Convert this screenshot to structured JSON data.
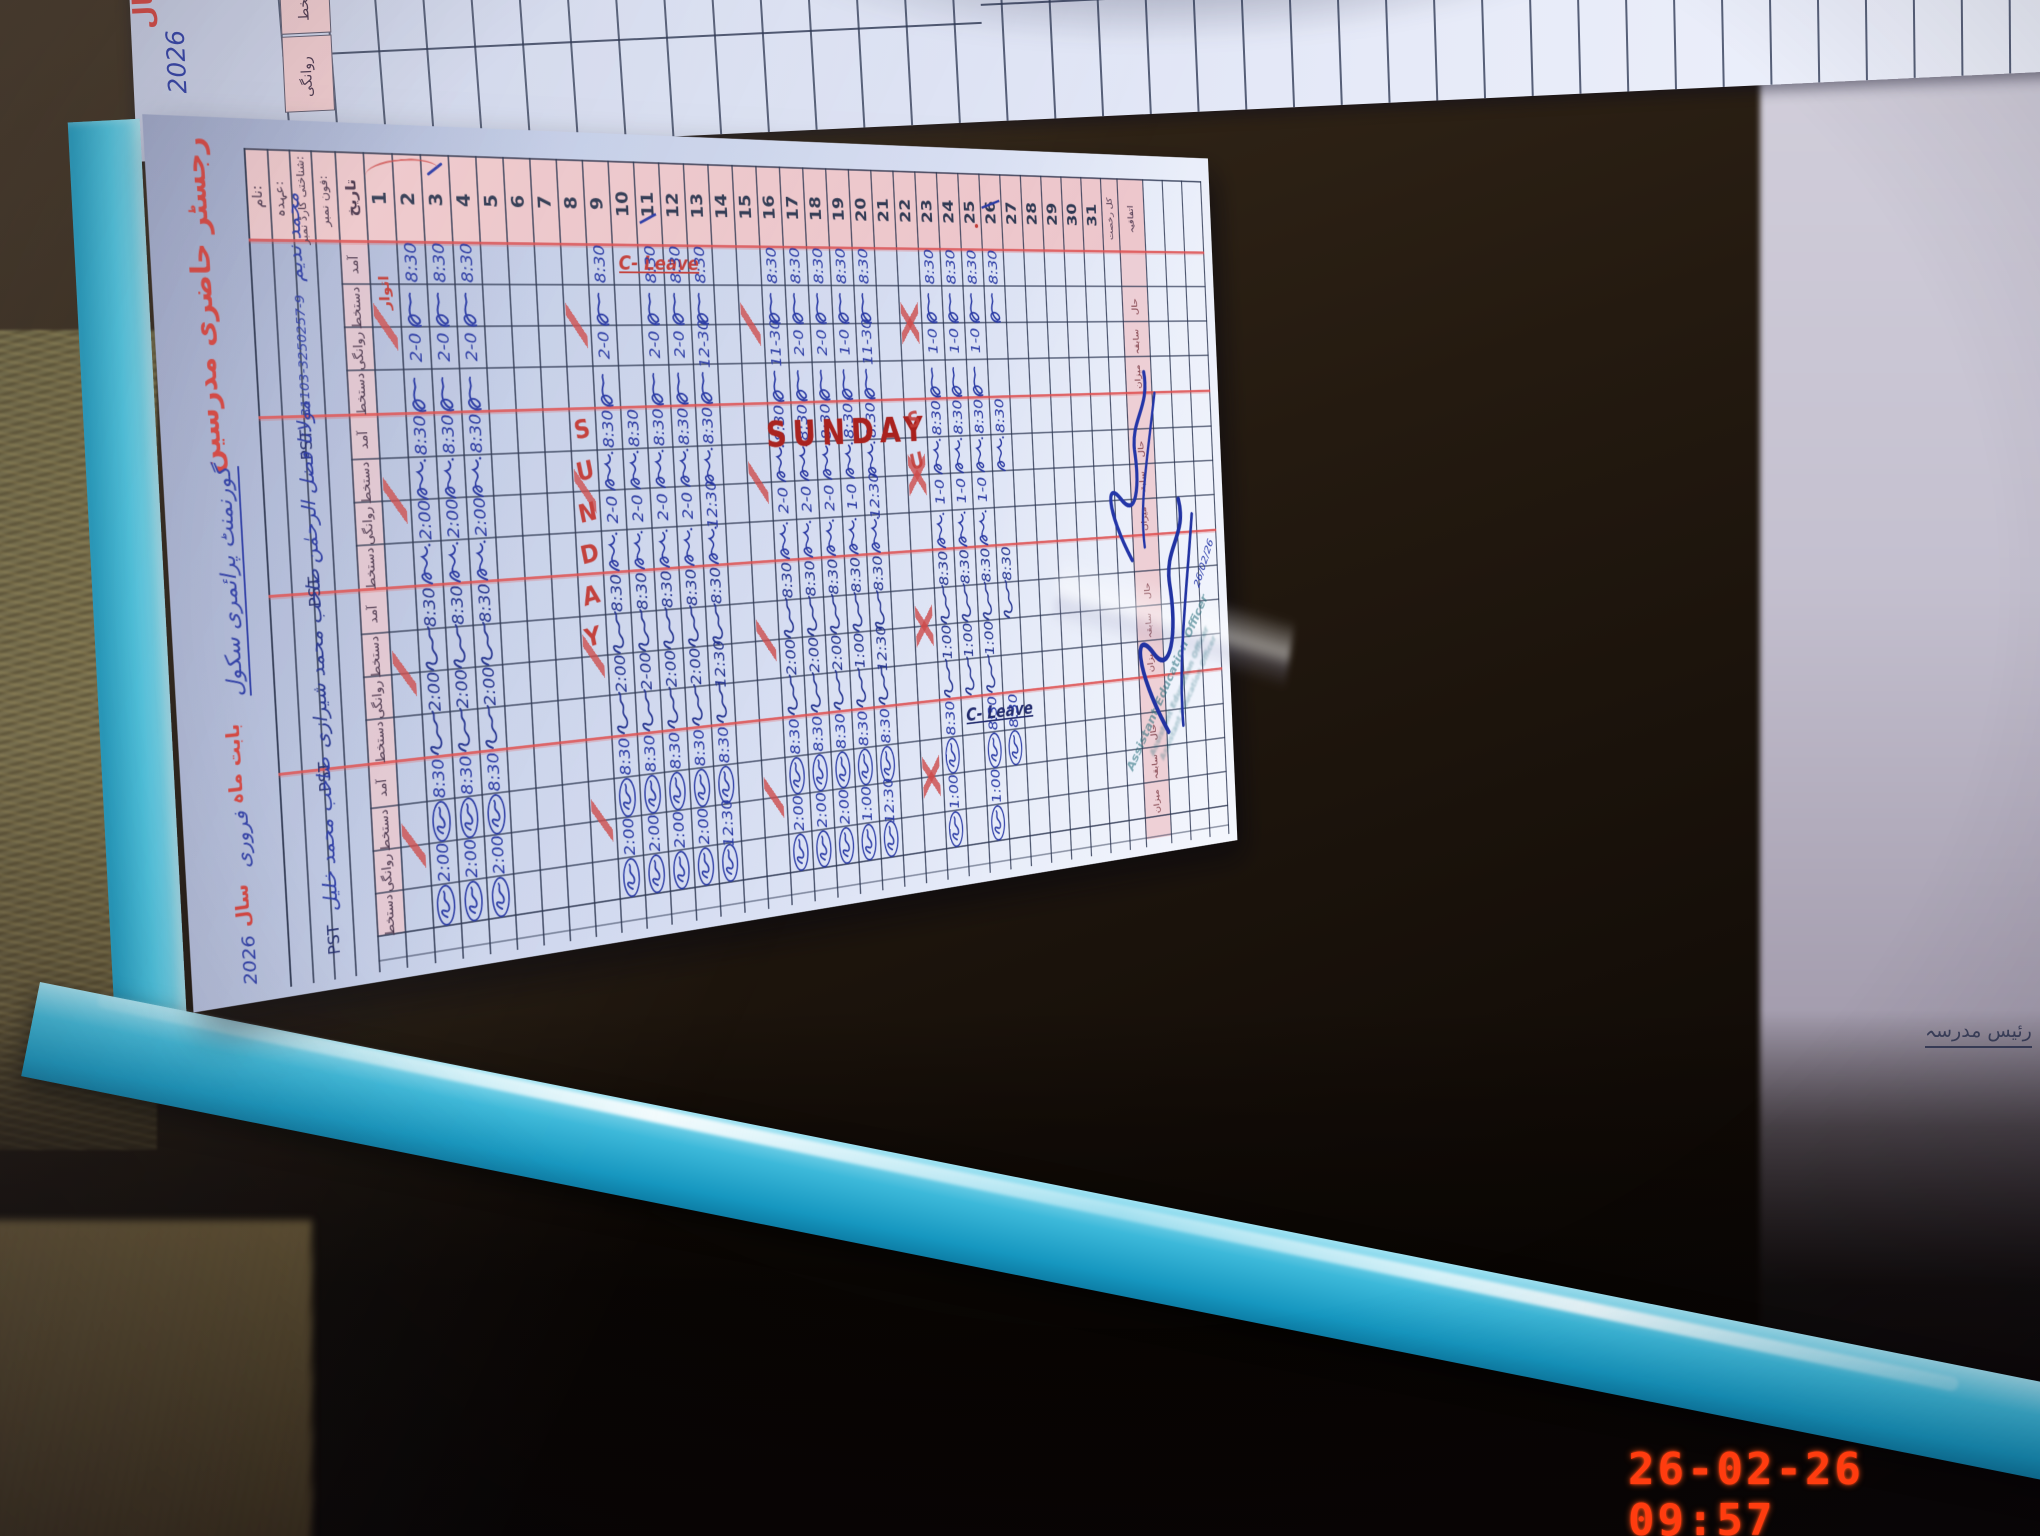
{
  "camera_timestamp": "26-02-26  09:57",
  "page_title": {
    "register": "رجسٹر حاضری مدرسین",
    "school": "گورنمنٹ پرائمری سکول",
    "month_prefix": "بابت ماہ",
    "month": "فروری",
    "year_word": "سال",
    "year": "2026"
  },
  "facing_page": {
    "year_word": "سال",
    "year": "2026",
    "pink_labels": [
      "دستخط",
      "روانگی"
    ]
  },
  "header_labels": {
    "name": "نام:",
    "designation": "عہدہ:",
    "cnic": "شناختی کارڈ نمبر:",
    "phone": "فون نمبر:",
    "date": "تاریخ"
  },
  "column_headers": [
    "آمد",
    "دستخط",
    "روانگی",
    "دستخط"
  ],
  "totals_labels": {
    "top": [
      "کل رخصت",
      "اتفاقیہ"
    ],
    "cycle": [
      "حال",
      "سابقہ",
      "میزان"
    ]
  },
  "num_days": 31,
  "sundays": [
    1,
    8,
    15,
    22
  ],
  "sunday_word": "SUNDAY",
  "day1_note": "اتوار",
  "leave_text": "C- Leave",
  "teachers": [
    {
      "name": "محمد ندیم",
      "designation": "PST",
      "cnic": "31103-3250257-9",
      "sig": "mloop",
      "ink": "#2738a4",
      "days": {
        "2": [
          "8:30",
          "2-0"
        ],
        "3": [
          "8:30",
          "2-0"
        ],
        "4": [
          "8:30",
          "2-0"
        ],
        "9": [
          "8:30",
          "2-0"
        ],
        "10": "LEAVE",
        "11": [
          "8:30",
          "2-0"
        ],
        "12": [
          "8:30",
          "2-0"
        ],
        "13": [
          "8:30",
          "12-30"
        ],
        "16": [
          "8:30",
          "11-30"
        ],
        "17": [
          "8:30",
          "2-0"
        ],
        "18": [
          "8:30",
          "2-0"
        ],
        "19": [
          "8:30",
          "1-0"
        ],
        "20": [
          "8:30",
          "11-30"
        ],
        "23": [
          "8:30",
          "1-0"
        ],
        "24": [
          "8:30",
          "1-0"
        ],
        "25": [
          "8:30",
          "1-0"
        ],
        "26": [
          "8:30",
          null
        ]
      }
    },
    {
      "name": "مولانا فضل الرحمٰن",
      "designation": "PST",
      "cnic": "",
      "sig": "fees",
      "ink": "#2434a0",
      "days": {
        "2": [
          "8:30",
          "2:00"
        ],
        "3": [
          "8:30",
          "2:00"
        ],
        "4": [
          "8:30",
          "2:00"
        ],
        "9": [
          "8:30",
          "2-0"
        ],
        "10": [
          "8:30",
          "2-0"
        ],
        "11": [
          "8:30",
          "2-0"
        ],
        "12": [
          "8:30",
          "2-0"
        ],
        "13": [
          "8:30",
          "12:30"
        ],
        "16": [
          "8:30",
          "2-0"
        ],
        "17": [
          "8:30",
          "2-0"
        ],
        "18": [
          "8:30",
          "2-0"
        ],
        "19": [
          "8:30",
          "1-0"
        ],
        "20": [
          "8:30",
          "12:30"
        ],
        "23": [
          "8:30",
          "1-0"
        ],
        "24": [
          "8:30",
          "1-0"
        ],
        "25": [
          "8:30",
          "1-0"
        ],
        "26": [
          "8:30",
          null
        ]
      }
    },
    {
      "name": "صاحب محمد شیرازی",
      "designation": "PST",
      "cnic": "",
      "sig": "saino",
      "ink": "#20308e",
      "days": {
        "2": [
          "8:30",
          "2:00"
        ],
        "3": [
          "8:30",
          "2:00"
        ],
        "4": [
          "8:30",
          "2:00"
        ],
        "9": [
          "8:30",
          "2:00"
        ],
        "10": [
          "8:30",
          "2-00"
        ],
        "11": [
          "8:30",
          "2:00"
        ],
        "12": [
          "8:30",
          "2:00"
        ],
        "13": [
          "8:30",
          "12:30"
        ],
        "16": [
          "8:30",
          "2:00"
        ],
        "17": [
          "8:30",
          "2:00"
        ],
        "18": [
          "8:30",
          "2:00"
        ],
        "19": [
          "8:30",
          "1:00"
        ],
        "20": [
          "8:30",
          "12:30"
        ],
        "23": [
          "8:30",
          "1:00"
        ],
        "24": [
          "8:30",
          "1:00"
        ],
        "25": [
          "8:30",
          "1:00"
        ],
        "26": [
          "8:30",
          null
        ]
      }
    },
    {
      "name": "صاحب محمد خلیل",
      "designation": "PST",
      "cnic": "",
      "sig": "circ",
      "ink": "#2738a4",
      "days": {
        "2": [
          "8:30",
          "2:00"
        ],
        "3": [
          "8:30",
          "2:00"
        ],
        "4": [
          "8:30",
          "2:00"
        ],
        "9": [
          "8:30",
          "2:00"
        ],
        "10": [
          "8:30",
          "2:00"
        ],
        "11": [
          "8:30",
          "2:00"
        ],
        "12": [
          "8:30",
          "2:00"
        ],
        "13": [
          "8:30",
          "12:30"
        ],
        "16": [
          "8:30",
          "2:00"
        ],
        "17": [
          "8:30",
          "2:00"
        ],
        "18": [
          "8:30",
          "2:00"
        ],
        "19": [
          "8:30",
          "1:00"
        ],
        "20": [
          "8:30",
          "12:30"
        ],
        "23": [
          "8:30",
          "1:00"
        ],
        "24": "LEAVE_DARK",
        "25": [
          "8:30",
          "1:00"
        ],
        "26": [
          "8:30",
          null
        ]
      }
    }
  ],
  "stamp": {
    "line1": "Assistant Education Officer"
  },
  "aside_label": "رئیس مدرسہ",
  "sign_date": "26/02/26"
}
